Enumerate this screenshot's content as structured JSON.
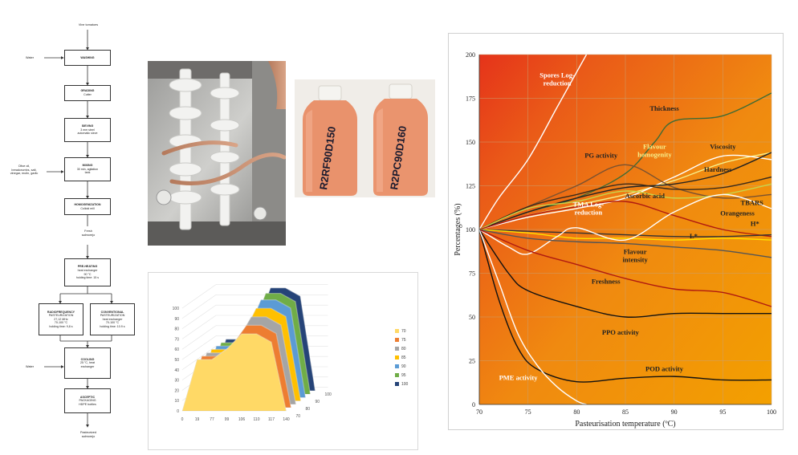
{
  "flow": {
    "start": "Vine tomatoes",
    "steps": [
      {
        "key": "washing",
        "title": "WASHING",
        "lines": []
      },
      {
        "key": "grading",
        "title": "GRADING",
        "lines": [
          "Cutter"
        ]
      },
      {
        "key": "sieving",
        "title": "SIEVING",
        "lines": [
          "3 mm steel",
          "automatic sieve"
        ]
      },
      {
        "key": "mixing",
        "title": "MIXING",
        "lines": [
          "30 min, agitation",
          "tank"
        ]
      },
      {
        "key": "homogenization",
        "title": "HOMOGENIZATION",
        "lines": [
          "Colloid mill"
        ]
      },
      {
        "key": "preheating",
        "title": "PRE-HEATING",
        "lines": [
          "heat exchanger",
          "90 °C",
          "holding time: 15 s"
        ]
      },
      {
        "key": "cooling",
        "title": "COOLING",
        "lines": [
          "25 °C, heat",
          "exchanger"
        ]
      },
      {
        "key": "packaging",
        "title": "ASCEPTIC",
        "lines": [
          "PACKAGING",
          "HDPE bottles"
        ]
      }
    ],
    "rf": {
      "title": "RADIOFREQUENCY",
      "lines": [
        "PASTEURIZATION",
        "27,12 MHz",
        "70-100 °C",
        "holding time: 9,8 s"
      ]
    },
    "conv": {
      "title": "CONVENTIONAL",
      "lines": [
        "PASTEURIZATION",
        "heat exchanger",
        "70-100 °C",
        "holding time: 10.9 s"
      ]
    },
    "inputs": {
      "water1": "Water",
      "mix": [
        "Olive oil,",
        "breadcrumbs, salt,",
        "vinegar, mulin, garlic"
      ],
      "water2": "Water"
    },
    "intermediate": [
      "Fresh",
      "salmorejo"
    ],
    "end": [
      "Pasteurized",
      "salmorejo"
    ]
  },
  "bottles": {
    "label_left": "R2RF90D150",
    "label_right": "R2PC90D160",
    "colors": {
      "body": "#e9926c",
      "cap": "#f4f2ee"
    }
  },
  "chart3d": {
    "x_labels": [
      "0",
      "19",
      "77",
      "99",
      "106",
      "110",
      "117",
      "140"
    ],
    "y_ticks": [
      "0",
      "10",
      "20",
      "30",
      "40",
      "50",
      "60",
      "70",
      "80",
      "90",
      "100"
    ],
    "depth_labels": [
      "70",
      "80",
      "90",
      "100"
    ],
    "series": [
      {
        "name": "70",
        "color": "#ffd966",
        "peak": 75
      },
      {
        "name": "75",
        "color": "#ed7d31",
        "peak": 80
      },
      {
        "name": "80",
        "color": "#a5a5a5",
        "peak": 85
      },
      {
        "name": "85",
        "color": "#ffc000",
        "peak": 90
      },
      {
        "name": "90",
        "color": "#5b9bd5",
        "peak": 95
      },
      {
        "name": "95",
        "color": "#70ad47",
        "peak": 98
      },
      {
        "name": "100",
        "color": "#264478",
        "peak": 100
      }
    ]
  },
  "chart_data": {
    "type": "line",
    "xlabel": "Pasteurisation temperature (ºC)",
    "ylabel": "Percentages (%)",
    "xlim": [
      70,
      100
    ],
    "ylim": [
      0,
      200
    ],
    "x_ticks": [
      70,
      75,
      80,
      85,
      90,
      95,
      100
    ],
    "y_ticks": [
      0,
      25,
      50,
      75,
      100,
      125,
      150,
      175,
      200
    ],
    "background": {
      "from": "#f3a000",
      "to": "#e5331a"
    },
    "series": [
      {
        "name": "Spores Log-reduction",
        "color": "#ffffff",
        "x": [
          70,
          72,
          75,
          78,
          80,
          81
        ],
        "y": [
          100,
          118,
          140,
          170,
          190,
          200
        ]
      },
      {
        "name": "Thickness",
        "color": "#3e6b35",
        "x": [
          70,
          75,
          80,
          85,
          88,
          90,
          95,
          100
        ],
        "y": [
          100,
          110,
          118,
          132,
          150,
          162,
          165,
          178
        ]
      },
      {
        "name": "Flavour homogenity",
        "color": "#f6ee8a",
        "x": [
          70,
          75,
          80,
          85,
          90,
          95,
          100
        ],
        "y": [
          100,
          108,
          114,
          120,
          128,
          138,
          144
        ]
      },
      {
        "name": "Viscosity",
        "color": "#ffffff",
        "x": [
          70,
          75,
          80,
          85,
          90,
          95,
          100
        ],
        "y": [
          100,
          107,
          112,
          118,
          130,
          142,
          140
        ]
      },
      {
        "name": "PG activity",
        "color": "#7a5230",
        "x": [
          70,
          75,
          80,
          85,
          90,
          95,
          100
        ],
        "y": [
          100,
          113,
          125,
          137,
          124,
          118,
          120
        ]
      },
      {
        "name": "Hardness",
        "color": "#222222",
        "x": [
          70,
          75,
          80,
          85,
          90,
          95,
          100
        ],
        "y": [
          100,
          110,
          118,
          124,
          126,
          132,
          144
        ]
      },
      {
        "name": "TBARS",
        "color": "#3a2a1a",
        "x": [
          70,
          75,
          80,
          85,
          90,
          95,
          100
        ],
        "y": [
          100,
          113,
          120,
          126,
          123,
          124,
          130
        ]
      },
      {
        "name": "Orangeness",
        "color": "#c8d44a",
        "x": [
          70,
          75,
          80,
          85,
          90,
          95,
          100
        ],
        "y": [
          100,
          112,
          116,
          122,
          118,
          120,
          126
        ]
      },
      {
        "name": "Ascorbic acid",
        "color": "#b01a10",
        "x": [
          70,
          75,
          80,
          85,
          90,
          95,
          100
        ],
        "y": [
          100,
          108,
          113,
          116,
          108,
          100,
          96
        ]
      },
      {
        "name": "H*",
        "color": "#333333",
        "x": [
          70,
          75,
          80,
          85,
          90,
          95,
          100
        ],
        "y": [
          100,
          99,
          98,
          97,
          96,
          96,
          97
        ]
      },
      {
        "name": "L*",
        "color": "#ffe000",
        "x": [
          70,
          75,
          80,
          85,
          90,
          95,
          100
        ],
        "y": [
          100,
          98,
          95,
          95,
          94,
          95,
          94
        ]
      },
      {
        "name": "TMA Log-reduction",
        "color": "#ffffff",
        "x": [
          70,
          73,
          75,
          78,
          80,
          85,
          90,
          95,
          100
        ],
        "y": [
          100,
          90,
          86,
          96,
          101,
          94,
          110,
          120,
          112
        ]
      },
      {
        "name": "Flavour intensity",
        "color": "#555555",
        "x": [
          70,
          75,
          80,
          85,
          90,
          95,
          100
        ],
        "y": [
          100,
          95,
          93,
          92,
          90,
          88,
          84
        ]
      },
      {
        "name": "Freshness",
        "color": "#b01a10",
        "x": [
          70,
          75,
          80,
          85,
          90,
          95,
          100
        ],
        "y": [
          100,
          88,
          80,
          72,
          66,
          64,
          56
        ]
      },
      {
        "name": "PPO activity",
        "color": "#111111",
        "x": [
          70,
          73,
          75,
          80,
          85,
          90,
          95,
          100
        ],
        "y": [
          100,
          75,
          65,
          56,
          50,
          52,
          52,
          52
        ]
      },
      {
        "name": "POD activity",
        "color": "#111111",
        "x": [
          70,
          72,
          74,
          76,
          80,
          85,
          90,
          95,
          100
        ],
        "y": [
          100,
          60,
          32,
          20,
          13,
          15,
          16,
          14,
          14
        ]
      },
      {
        "name": "PME activity",
        "color": "#ffffff",
        "x": [
          70,
          72,
          74,
          76,
          78,
          80,
          81
        ],
        "y": [
          100,
          70,
          40,
          22,
          10,
          2,
          0
        ]
      }
    ],
    "labels": [
      {
        "series": "Spores Log-reduction",
        "lines": [
          "Spores Log-",
          "reduction"
        ],
        "x": 78,
        "y": 187,
        "color": "#ffffff"
      },
      {
        "series": "Thickness",
        "lines": [
          "Thickness"
        ],
        "x": 89,
        "y": 168,
        "color": "#222222"
      },
      {
        "series": "PG activity",
        "lines": [
          "PG activity"
        ],
        "x": 82.5,
        "y": 141,
        "color": "#222222"
      },
      {
        "series": "Flavour homogenity",
        "lines": [
          "Flavour",
          "homogenity"
        ],
        "x": 88,
        "y": 146,
        "color": "#f6ee8a"
      },
      {
        "series": "Viscosity",
        "lines": [
          "Viscosity"
        ],
        "x": 95,
        "y": 146,
        "color": "#222222"
      },
      {
        "series": "Hardness",
        "lines": [
          "Hardness"
        ],
        "x": 94.5,
        "y": 133,
        "color": "#222222"
      },
      {
        "series": "TBARS",
        "lines": [
          "TBARS"
        ],
        "x": 98,
        "y": 114,
        "color": "#222222"
      },
      {
        "series": "Orangeness",
        "lines": [
          "Orangeness"
        ],
        "x": 96.5,
        "y": 108,
        "color": "#222222"
      },
      {
        "series": "H*",
        "lines": [
          "H*"
        ],
        "x": 98.3,
        "y": 102,
        "color": "#222222"
      },
      {
        "series": "Ascorbic acid",
        "lines": [
          "Ascorbic acid"
        ],
        "x": 87,
        "y": 118,
        "color": "#222222"
      },
      {
        "series": "TMA Log-reduction",
        "lines": [
          "TMA Log-",
          "reduction"
        ],
        "x": 81.2,
        "y": 113,
        "color": "#ffffff"
      },
      {
        "series": "L*",
        "lines": [
          "L*"
        ],
        "x": 92,
        "y": 95,
        "color": "#222222"
      },
      {
        "series": "Flavour intensity",
        "lines": [
          "Flavour",
          "intensity"
        ],
        "x": 86,
        "y": 86,
        "color": "#222222"
      },
      {
        "series": "Freshness",
        "lines": [
          "Freshness"
        ],
        "x": 83,
        "y": 69,
        "color": "#222222"
      },
      {
        "series": "PPO activity",
        "lines": [
          "PPO activity"
        ],
        "x": 84.5,
        "y": 40,
        "color": "#222222"
      },
      {
        "series": "POD activity",
        "lines": [
          "POD activity"
        ],
        "x": 89,
        "y": 19,
        "color": "#222222"
      },
      {
        "series": "PME activity",
        "lines": [
          "PME activity"
        ],
        "x": 74,
        "y": 14,
        "color": "#ffffff"
      }
    ]
  }
}
